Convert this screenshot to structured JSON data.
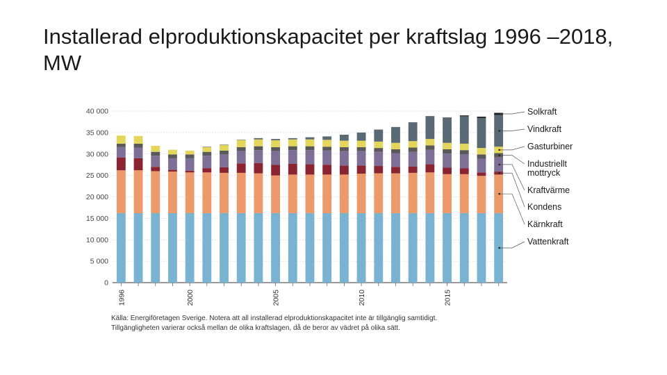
{
  "slide": {
    "title": "Installerad elproduktionskapacitet per kraftslag 1996 –2018, MW"
  },
  "caption": {
    "line1": "Källa: Energiföretagen Sverige. Notera att all installerad elproduktionskapacitet inte är tillgänglig samtidigt.",
    "line2": "Tillgängligheten varierar också mellan de olika kraftslagen, då de beror av vädret på olika sätt."
  },
  "chart_data": {
    "type": "bar",
    "stacked": true,
    "title": "Installerad elproduktionskapacitet per kraftslag 1996 –2018, MW",
    "xlabel": "",
    "ylabel": "MW",
    "ylim": [
      0,
      40000
    ],
    "y_ticks": [
      0,
      5000,
      10000,
      15000,
      20000,
      25000,
      30000,
      35000,
      40000
    ],
    "y_tick_labels": [
      "0",
      "5 000",
      "10 000",
      "15 000",
      "20 000",
      "25 000",
      "30 000",
      "35 000",
      "40 000"
    ],
    "x_tick_labels": [
      "1996",
      "2000",
      "2005",
      "2010",
      "2015"
    ],
    "legend_position": "right",
    "categories": [
      "1996",
      "1997",
      "1998",
      "1999",
      "2000",
      "2001",
      "2002",
      "2003",
      "2004",
      "2005",
      "2006",
      "2007",
      "2008",
      "2009",
      "2010",
      "2011",
      "2012",
      "2013",
      "2014",
      "2015",
      "2016",
      "2017",
      "2018"
    ],
    "series": [
      {
        "name": "Vattenkraft",
        "color": "#7ab3d1",
        "values": [
          16200,
          16200,
          16200,
          16200,
          16200,
          16200,
          16200,
          16200,
          16200,
          16200,
          16200,
          16200,
          16200,
          16200,
          16200,
          16200,
          16200,
          16200,
          16200,
          16200,
          16200,
          16200,
          16200
        ]
      },
      {
        "name": "Kärnkraft",
        "color": "#ec9a6b",
        "values": [
          10000,
          10000,
          9800,
          9700,
          9500,
          9500,
          9400,
          9400,
          9300,
          8800,
          9000,
          9000,
          9000,
          9000,
          9200,
          9300,
          9300,
          9400,
          9500,
          9100,
          9100,
          8700,
          9000
        ]
      },
      {
        "name": "Kondens",
        "color": "#8b2431",
        "values": [
          3000,
          2800,
          1000,
          400,
          400,
          1000,
          1300,
          2200,
          2400,
          2500,
          2500,
          2400,
          2300,
          2100,
          1900,
          1700,
          1500,
          1500,
          1900,
          1500,
          1400,
          800,
          700
        ]
      },
      {
        "name": "Kraftvärme",
        "color": "#7d6f95",
        "values": [
          2400,
          2500,
          2600,
          2700,
          2900,
          2900,
          3000,
          2900,
          3000,
          3200,
          3200,
          3300,
          3300,
          3400,
          3400,
          3300,
          3200,
          3400,
          3400,
          3300,
          3200,
          3200,
          3300
        ]
      },
      {
        "name": "Industriellt mottryck",
        "color": "#595959",
        "values": [
          800,
          900,
          900,
          900,
          900,
          900,
          900,
          900,
          900,
          900,
          900,
          900,
          900,
          900,
          900,
          900,
          900,
          1000,
          1000,
          1000,
          1000,
          1000,
          1000
        ]
      },
      {
        "name": "Gasturbiner",
        "color": "#e3d65a",
        "values": [
          1900,
          1800,
          1400,
          1100,
          900,
          1100,
          1300,
          1600,
          1600,
          1600,
          1600,
          1600,
          1600,
          1500,
          1500,
          1500,
          1500,
          1500,
          1500,
          1500,
          1500,
          1500,
          1500
        ]
      },
      {
        "name": "Vindkraft",
        "color": "#5a6a75",
        "values": [
          0,
          0,
          0,
          0,
          0,
          100,
          100,
          100,
          300,
          300,
          300,
          500,
          800,
          1400,
          1900,
          2800,
          3700,
          4400,
          5200,
          5800,
          6400,
          7000,
          7400
        ]
      },
      {
        "name": "Solkraft",
        "color": "#1f1f1f",
        "values": [
          0,
          0,
          0,
          0,
          0,
          0,
          0,
          0,
          0,
          0,
          0,
          0,
          0,
          0,
          0,
          0,
          0,
          0,
          100,
          100,
          200,
          300,
          500
        ]
      }
    ]
  }
}
